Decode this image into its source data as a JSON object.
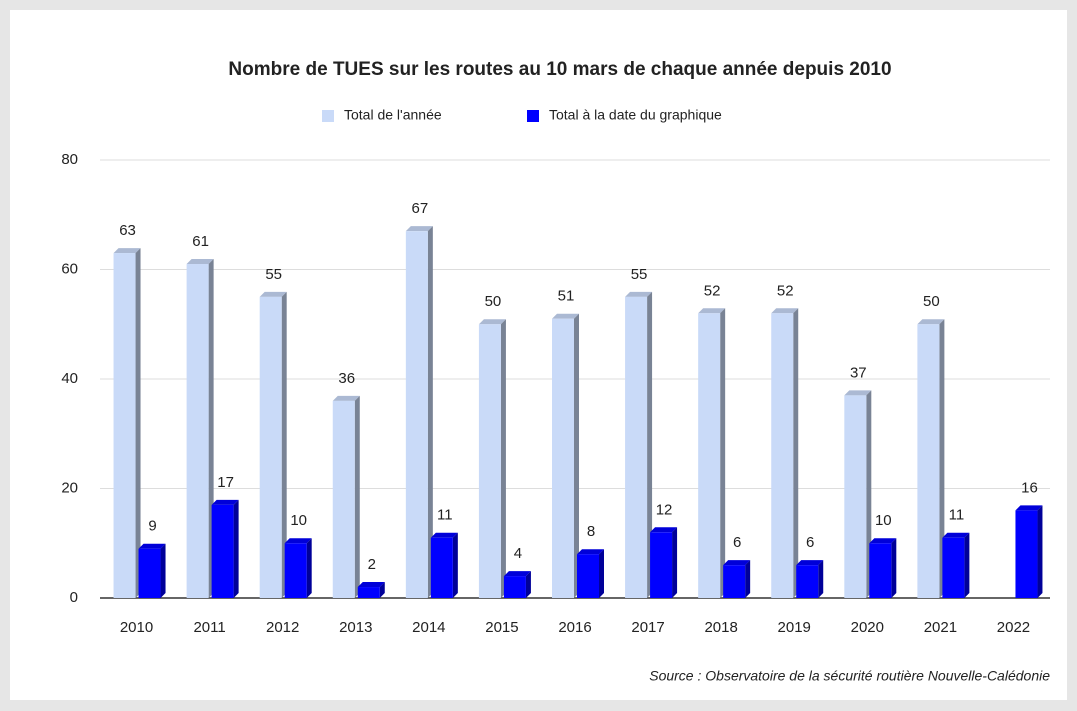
{
  "chart_data": {
    "type": "bar",
    "title": "Nombre de TUES sur les routes au 10 mars de chaque année depuis 2010",
    "categories": [
      "2010",
      "2011",
      "2012",
      "2013",
      "2014",
      "2015",
      "2016",
      "2017",
      "2018",
      "2019",
      "2020",
      "2021",
      "2022"
    ],
    "series": [
      {
        "name": "Total de l'année",
        "color": "#c9daf8",
        "values": [
          63,
          61,
          55,
          36,
          67,
          50,
          51,
          55,
          52,
          52,
          37,
          50,
          null
        ]
      },
      {
        "name": "Total à la date du graphique",
        "color": "#0000ff",
        "values": [
          9,
          17,
          10,
          2,
          11,
          4,
          8,
          12,
          6,
          6,
          10,
          11,
          16
        ]
      }
    ],
    "ylim": [
      0,
      80
    ],
    "yticks": [
      0,
      20,
      40,
      60,
      80
    ],
    "grid": true,
    "legend": "top",
    "source": "Source : Observatoire de la sécurité routière Nouvelle-Calédonie"
  }
}
